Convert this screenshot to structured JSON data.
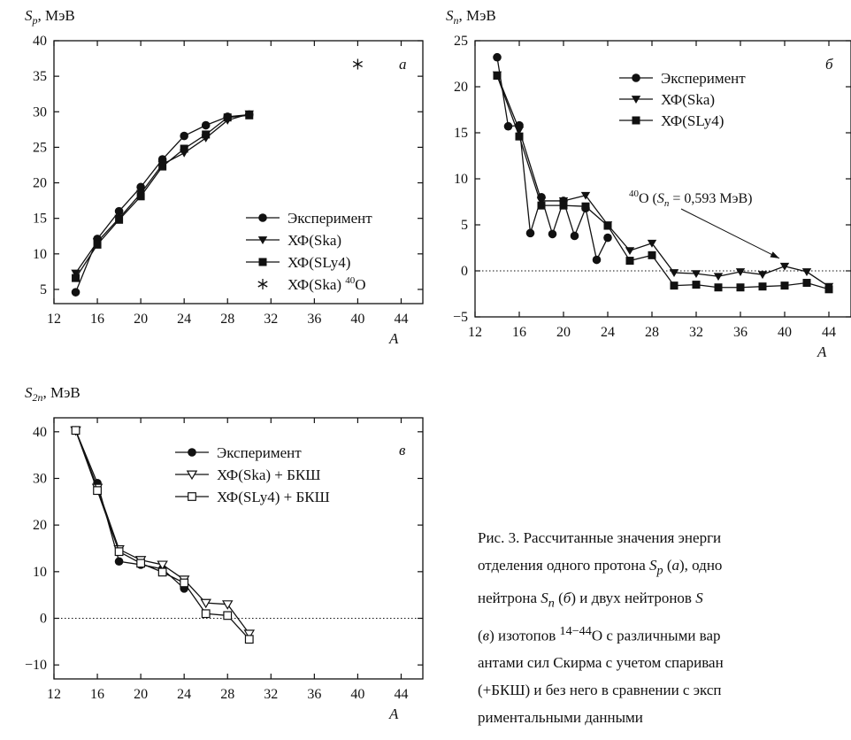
{
  "chart_data": [
    {
      "type": "line",
      "ylabel": "Sp, МэВ",
      "ylabel_sym": "S",
      "ylabel_sub": "p",
      "ylabel_unit": ", МэВ",
      "xlabel": "A",
      "panel_label": "а",
      "xlim": [
        12,
        46
      ],
      "ylim": [
        3,
        40
      ],
      "xticks": [
        12,
        16,
        20,
        24,
        28,
        32,
        36,
        40,
        44
      ],
      "yticks": [
        5,
        10,
        15,
        20,
        25,
        30,
        35,
        40
      ],
      "zero_line": false,
      "legend": "bottom-right",
      "series": [
        {
          "name": "Эксперимент",
          "marker": "circle",
          "x": [
            14,
            16,
            18,
            20,
            22,
            24,
            26,
            28,
            30
          ],
          "y": [
            4.6,
            12.1,
            16.0,
            19.4,
            23.3,
            26.6,
            28.1,
            29.3,
            29.6
          ]
        },
        {
          "name": "ХФ(Ska)",
          "marker": "tri-down",
          "x": [
            14,
            16,
            18,
            20,
            22,
            24,
            26,
            28,
            30
          ],
          "y": [
            7.3,
            11.7,
            15.0,
            18.5,
            22.6,
            24.2,
            26.3,
            28.8,
            29.7
          ]
        },
        {
          "name": "ХФ(SLy4)",
          "marker": "square",
          "x": [
            14,
            16,
            18,
            20,
            22,
            24,
            26,
            28,
            30
          ],
          "y": [
            6.6,
            11.3,
            14.8,
            18.1,
            22.3,
            24.8,
            26.8,
            29.2,
            29.5
          ]
        },
        {
          "name": "ХФ(Ska) 40O",
          "name_main": "ХФ(Ska) ",
          "name_sup": "40",
          "name_tail": "O",
          "marker": "asterisk",
          "no_line": true,
          "x": [
            40
          ],
          "y": [
            36.7
          ]
        }
      ]
    },
    {
      "type": "line",
      "ylabel": "Sn, МэВ",
      "ylabel_sym": "S",
      "ylabel_sub": "n",
      "ylabel_unit": ", МэВ",
      "xlabel": "A",
      "panel_label": "б",
      "xlim": [
        12,
        46
      ],
      "ylim": [
        -5,
        25
      ],
      "xticks": [
        12,
        16,
        20,
        24,
        28,
        32,
        36,
        40,
        44
      ],
      "yticks": [
        -5,
        0,
        5,
        10,
        15,
        20,
        25
      ],
      "zero_line": true,
      "legend": "top-right",
      "series": [
        {
          "name": "Эксперимент",
          "marker": "circle",
          "x": [
            14,
            15,
            16,
            17,
            18,
            19,
            20,
            21,
            22,
            23,
            24
          ],
          "y": [
            23.2,
            15.7,
            15.8,
            4.1,
            8.0,
            4.0,
            7.6,
            3.8,
            6.8,
            1.2,
            3.6
          ]
        },
        {
          "name": "ХФ(Ska)",
          "marker": "tri-down",
          "x": [
            14,
            16,
            18,
            20,
            22,
            24,
            26,
            28,
            30,
            32,
            34,
            36,
            38,
            40,
            42,
            44
          ],
          "y": [
            21.3,
            15.3,
            7.6,
            7.6,
            8.2,
            5.0,
            2.2,
            3.0,
            -0.2,
            -0.3,
            -0.6,
            -0.1,
            -0.4,
            0.5,
            -0.1,
            -1.7
          ]
        },
        {
          "name": "ХФ(SLy4)",
          "marker": "square",
          "x": [
            14,
            16,
            18,
            20,
            22,
            24,
            26,
            28,
            30,
            32,
            34,
            36,
            38,
            40,
            42,
            44
          ],
          "y": [
            21.2,
            14.6,
            7.1,
            7.1,
            7.0,
            4.9,
            1.1,
            1.7,
            -1.6,
            -1.5,
            -1.8,
            -1.8,
            -1.7,
            -1.6,
            -1.3,
            -2.0
          ]
        }
      ],
      "annotation": {
        "text": "40O (Sn = 0,593 МэВ)",
        "sup": "40",
        "el": "O (",
        "sym": "S",
        "sub": "n",
        "val": " = 0,593 МэВ)",
        "target_x": 40,
        "target_y": 0.593
      }
    },
    {
      "type": "line",
      "ylabel": "S2n, МэВ",
      "ylabel_sym": "S",
      "ylabel_sub": "2n",
      "ylabel_unit": ", МэВ",
      "xlabel": "A",
      "panel_label": "в",
      "xlim": [
        12,
        46
      ],
      "ylim": [
        -13,
        43
      ],
      "xticks": [
        12,
        16,
        20,
        24,
        28,
        32,
        36,
        40,
        44
      ],
      "yticks": [
        -10,
        0,
        10,
        20,
        30,
        40
      ],
      "zero_line": true,
      "legend": "top-right",
      "series": [
        {
          "name": "Эксперимент",
          "marker": "circle",
          "x": [
            14,
            16,
            18,
            20,
            22,
            24
          ],
          "y": [
            40.3,
            29.0,
            12.2,
            11.5,
            10.6,
            6.4
          ]
        },
        {
          "name": "ХФ(Ska) + БКШ",
          "marker": "tri-down-open",
          "x": [
            14,
            16,
            18,
            20,
            22,
            24,
            26,
            28,
            30
          ],
          "y": [
            40.3,
            28.0,
            14.8,
            12.5,
            11.5,
            8.3,
            3.3,
            3.0,
            -3.3
          ]
        },
        {
          "name": "ХФ(SLy4) + БКШ",
          "marker": "square-open",
          "x": [
            14,
            16,
            18,
            20,
            22,
            24,
            26,
            28,
            30
          ],
          "y": [
            40.3,
            27.4,
            14.3,
            11.8,
            9.9,
            7.6,
            1.0,
            0.6,
            -4.5
          ]
        }
      ]
    }
  ],
  "caption": {
    "line1": "Рис. 3.  Рассчитанные значения энерги",
    "line2a": "отделения одного протона ",
    "line2b": " (",
    "line2c": "), одно",
    "line3a": "нейтрона ",
    "line3b": " (",
    "line3c": ") и двух нейтронов ",
    "line4a": "(",
    "line4b": ") изотопов ",
    "line4c": "O с различными вар",
    "line5": "антами сил Скирма с учетом спариван",
    "line6": "(+БКШ) и без него в сравнении с эксп",
    "line7": "риментальными данными",
    "sym_S": "S",
    "sub_p": "p",
    "sub_n": "n",
    "lbl_a": "а",
    "lbl_b": "б",
    "lbl_v": "в",
    "iso_sup": "14−44",
    "frag_S2": "S"
  }
}
